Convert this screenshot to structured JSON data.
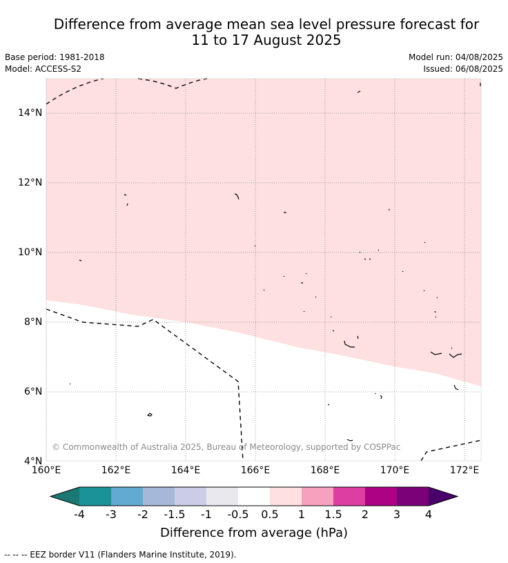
{
  "title_line1": "Difference from average mean sea level pressure forecast for",
  "title_line2": "11 to 17 August 2025",
  "base_period": "Base period: 1981-2018",
  "model": "Model: ACCESS-S2",
  "model_run": "Model run: 04/08/2025",
  "issued": "Issued: 06/08/2025",
  "copyright": "© Commonwealth of Australia 2025, Bureau of Meteorology, supported by COSPPac",
  "map": {
    "lat_range": [
      4,
      15
    ],
    "lon_range": [
      160,
      172.5
    ],
    "lat_labels": [
      "14°N",
      "12°N",
      "10°N",
      "8°N",
      "6°N",
      "4°N"
    ],
    "lon_labels": [
      "160°E",
      "162°E",
      "164°E",
      "166°E",
      "168°E",
      "170°E",
      "172°E"
    ],
    "shaded_class": "0.5 to 1",
    "shaded_color": "#fde0df",
    "gridlines": "dotted"
  },
  "colorbar": {
    "title": "Difference from average (hPa)",
    "ticks": [
      "-4",
      "-3",
      "-2",
      "-1.5",
      "-1",
      "-0.5",
      "0.5",
      "1",
      "1.5",
      "2",
      "3",
      "4"
    ],
    "colors": [
      "#1b7873",
      "#1a9296",
      "#62aad2",
      "#a5b8d9",
      "#cbcde6",
      "#eae8ef",
      "#ffffff",
      "#fde0df",
      "#f8a1bf",
      "#dd3ea1",
      "#ad0284",
      "#7a0177",
      "#49006a"
    ]
  },
  "footnote": "--  --  -- EEZ border V11 (Flanders Marine Institute, 2019)."
}
